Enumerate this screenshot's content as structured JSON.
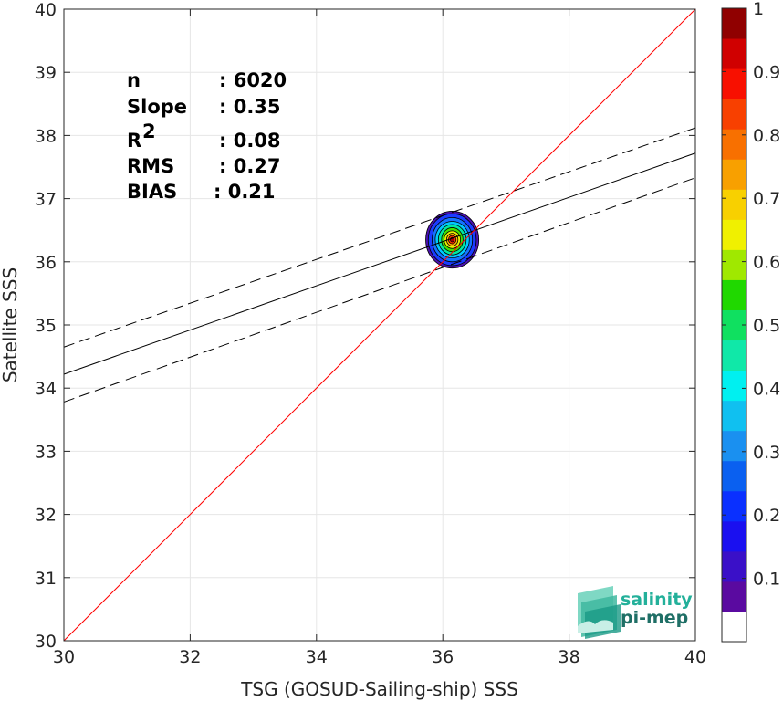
{
  "chart_data": {
    "type": "scatter",
    "subtype": "density-contour",
    "xlabel": "TSG (GOSUD-Sailing-ship) SSS",
    "ylabel": "Satellite SSS",
    "xlim": [
      30,
      40
    ],
    "ylim": [
      30,
      40
    ],
    "xticks": [
      "30",
      "32",
      "34",
      "36",
      "38",
      "40"
    ],
    "yticks": [
      "30",
      "31",
      "32",
      "33",
      "34",
      "35",
      "36",
      "37",
      "38",
      "39",
      "40"
    ],
    "grid": true,
    "stats": [
      {
        "label": "n",
        "value": ": 6020"
      },
      {
        "label": "Slope",
        "value": ": 0.35"
      },
      {
        "label": "R",
        "sup": "2",
        "value": ": 0.08"
      },
      {
        "label": "RMS",
        "value": ": 0.27"
      },
      {
        "label": "BIAS",
        "value": ": 0.21"
      }
    ],
    "identity_line": {
      "x": [
        30,
        40
      ],
      "y": [
        30,
        40
      ],
      "color": "#ff0000"
    },
    "fit_line": {
      "x": [
        30,
        40
      ],
      "y": [
        34.22,
        37.72
      ],
      "color": "#000000"
    },
    "fit_upper": {
      "x": [
        30,
        40
      ],
      "y": [
        34.65,
        38.12
      ],
      "style": "dashed"
    },
    "fit_lower": {
      "x": [
        30,
        40
      ],
      "y": [
        33.78,
        37.33
      ],
      "style": "dashed"
    },
    "density_center": {
      "x": 36.15,
      "y": 36.35
    },
    "density_levels": [
      {
        "level": 0.05,
        "rx": 0.42,
        "ry": 0.45,
        "color": "#4a10b0"
      },
      {
        "level": 0.15,
        "rx": 0.38,
        "ry": 0.41,
        "color": "#1a3cff"
      },
      {
        "level": 0.25,
        "rx": 0.32,
        "ry": 0.35,
        "color": "#1473ff"
      },
      {
        "level": 0.35,
        "rx": 0.27,
        "ry": 0.29,
        "color": "#00c8ff"
      },
      {
        "level": 0.45,
        "rx": 0.22,
        "ry": 0.24,
        "color": "#00e8a0"
      },
      {
        "level": 0.55,
        "rx": 0.17,
        "ry": 0.19,
        "color": "#40e000"
      },
      {
        "level": 0.65,
        "rx": 0.13,
        "ry": 0.14,
        "color": "#e8f000"
      },
      {
        "level": 0.75,
        "rx": 0.09,
        "ry": 0.1,
        "color": "#ffb000"
      },
      {
        "level": 0.85,
        "rx": 0.06,
        "ry": 0.065,
        "color": "#ff3000"
      },
      {
        "level": 0.95,
        "rx": 0.03,
        "ry": 0.035,
        "color": "#a00000"
      }
    ],
    "colorbar": {
      "ticks": [
        "0.1",
        "0.2",
        "0.3",
        "0.4",
        "0.5",
        "0.6",
        "0.7",
        "0.8",
        "0.9",
        "1"
      ],
      "range": [
        0,
        1
      ],
      "colors": [
        "#ffffff",
        "#5a0aa0",
        "#3a10c8",
        "#1a10f0",
        "#0a30ff",
        "#0a60f0",
        "#1a90f0",
        "#10c0f0",
        "#00f0f0",
        "#10e8a8",
        "#10e060",
        "#20d800",
        "#a0e800",
        "#f0f000",
        "#f8d000",
        "#f8a000",
        "#f87000",
        "#f84000",
        "#f81000",
        "#d00000",
        "#900000"
      ]
    },
    "logo": {
      "line1": "salinity",
      "line2": "pi-mep"
    }
  }
}
